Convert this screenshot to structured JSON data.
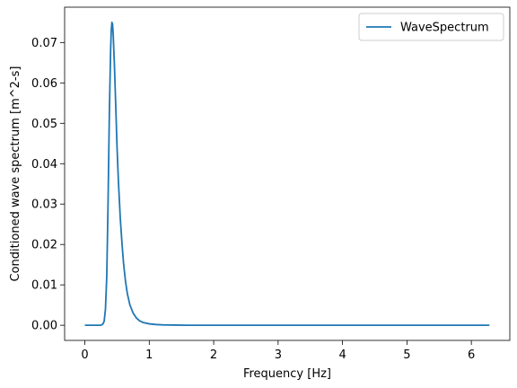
{
  "chart_data": {
    "type": "line",
    "title": "",
    "xlabel": "Frequency [Hz]",
    "ylabel": "Conditioned wave spectrum [m^2-s]",
    "xlim": [
      -0.314,
      6.597
    ],
    "ylim": [
      -0.00375,
      0.07875
    ],
    "xticks": [
      0,
      1,
      2,
      3,
      4,
      5,
      6
    ],
    "yticks": [
      0.0,
      0.01,
      0.02,
      0.03,
      0.04,
      0.05,
      0.06,
      0.07
    ],
    "ytick_labels": [
      "0.00",
      "0.01",
      "0.02",
      "0.03",
      "0.04",
      "0.05",
      "0.06",
      "0.07"
    ],
    "grid": false,
    "legend": {
      "position": "top-right"
    },
    "series": [
      {
        "name": "WaveSpectrum",
        "color": "#1f77b4",
        "x": [
          0.0,
          0.1,
          0.2,
          0.25,
          0.28,
          0.3,
          0.32,
          0.34,
          0.36,
          0.38,
          0.4,
          0.41,
          0.42,
          0.43,
          0.44,
          0.46,
          0.48,
          0.5,
          0.52,
          0.55,
          0.58,
          0.6,
          0.63,
          0.66,
          0.7,
          0.75,
          0.8,
          0.85,
          0.9,
          1.0,
          1.1,
          1.2,
          1.4,
          1.6,
          2.0,
          3.0,
          4.0,
          5.0,
          6.0,
          6.28
        ],
        "y": [
          0.0,
          0.0,
          0.0,
          0.0,
          0.0003,
          0.001,
          0.004,
          0.012,
          0.03,
          0.052,
          0.068,
          0.073,
          0.075,
          0.0745,
          0.072,
          0.064,
          0.054,
          0.044,
          0.036,
          0.0265,
          0.0195,
          0.0155,
          0.011,
          0.0078,
          0.005,
          0.003,
          0.0018,
          0.0011,
          0.0007,
          0.00035,
          0.00018,
          0.0001,
          4e-05,
          1e-05,
          0.0,
          0.0,
          0.0,
          0.0,
          0.0,
          0.0
        ]
      }
    ]
  }
}
